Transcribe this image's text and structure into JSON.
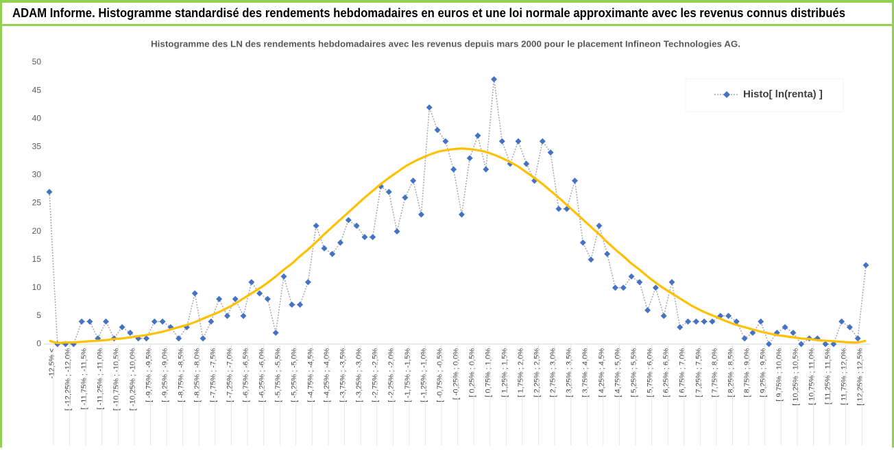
{
  "chart_data": {
    "type": "line",
    "suptitle": "ADAM Informe. Histogramme standardisé des rendements hebdomadaires en euros et une loi normale approximante avec les revenus connus distribués",
    "title": "Histogramme des LN des rendements hebdomadaires avec les revenus depuis mars 2000 pour le placement Infineon Technologies AG.",
    "categories": [
      "-12,5% <",
      null,
      "[ -12,25% ; -12,0%",
      null,
      "[ -11,75% ; -11,5%",
      null,
      "[ -11,25% ; -11,0%",
      null,
      "[ -10,75% ; -10,5%",
      null,
      "[ -10,25% ; -10,0%",
      null,
      "[ -9,75% ; -9,5%",
      null,
      "[ -9,25% ; -9,0%",
      null,
      "[ -8,75% ; -8,5%",
      null,
      "[ -8,25% ; -8,0%",
      null,
      "[ -7,75% ; -7,5%",
      null,
      "[ -7,25% ; -7,0%",
      null,
      "[ -6,75% ; -6,5%",
      null,
      "[ -6,25% ; -6,0%",
      null,
      "[ -5,75% ; -5,5%",
      null,
      "[ -5,25% ; -5,0%",
      null,
      "[ -4,75% ; -4,5%",
      null,
      "[ -4,25% ; -4,0%",
      null,
      "[ -3,75% ; -3,5%",
      null,
      "[ -3,25% ; -3,0%",
      null,
      "[ -2,75% ; -2,5%",
      null,
      "[ -2,25% ; -2,0%",
      null,
      "[ -1,75% ; -1,5%",
      null,
      "[ -1,25% ; -1,0%",
      null,
      "[ -0,75% ; -0,5%",
      null,
      "[ -0,25% ; 0,0%",
      null,
      "[ 0,25% ; 0,5%",
      null,
      "[ 0,75% ; 1,0%",
      null,
      "[ 1,25% ; 1,5%",
      null,
      "[ 1,75% ; 2,0%",
      null,
      "[ 2,25% ; 2,5%",
      null,
      "[ 2,75% ; 3,0%",
      null,
      "[ 3,25% ; 3,5%",
      null,
      "[ 3,75% ; 4,0%",
      null,
      "[ 4,25% ; 4,5%",
      null,
      "[ 4,75% ; 5,0%",
      null,
      "[ 5,25% ; 5,5%",
      null,
      "[ 5,75% ; 6,0%",
      null,
      "[ 6,25% ; 6,5%",
      null,
      "[ 6,75% ; 7,0%",
      null,
      "[ 7,25% ; 7,5%",
      null,
      "[ 7,75% ; 8,0%",
      null,
      "[ 8,25% ; 8,5%",
      null,
      "[ 8,75% ; 9,0%",
      null,
      "[ 9,25% ; 9,5%",
      null,
      "[ 9,75% ; 10,0%",
      null,
      "[ 10,25% ; 10,5%",
      null,
      "[ 10,75% ; 11,0%",
      null,
      "[ 11,25% ; 11,5%",
      null,
      "[ 11,75% ; 12,0%",
      null,
      "[ 12,25% ; 12,5%",
      null
    ],
    "series": [
      {
        "name": "Histo[ ln(renta) ]",
        "color": "#4472c4",
        "line_color": "#a6a6a6",
        "marker": "diamond",
        "smooth": false,
        "values": [
          27,
          0,
          0,
          0,
          4,
          4,
          1,
          4,
          1,
          3,
          2,
          1,
          1,
          4,
          4,
          3,
          1,
          3,
          9,
          1,
          4,
          8,
          5,
          8,
          5,
          11,
          9,
          8,
          2,
          12,
          7,
          7,
          11,
          21,
          17,
          16,
          18,
          22,
          21,
          19,
          19,
          28,
          27,
          20,
          26,
          29,
          23,
          42,
          38,
          36,
          31,
          23,
          33,
          37,
          31,
          47,
          36,
          32,
          36,
          32,
          29,
          36,
          34,
          24,
          24,
          29,
          18,
          15,
          21,
          16,
          10,
          10,
          12,
          11,
          6,
          10,
          5,
          11,
          3,
          4,
          4,
          4,
          4,
          5,
          5,
          4,
          1,
          2,
          4,
          0,
          2,
          3,
          2,
          0,
          1,
          1,
          0,
          0,
          4,
          3,
          1,
          14
        ]
      },
      {
        "color": "#ffc000",
        "line_color": "#ffc000",
        "smooth": true,
        "values": [
          0.6,
          0.2,
          0.3,
          0.3,
          0.4,
          0.5,
          0.6,
          0.7,
          0.9,
          1.0,
          1.2,
          1.4,
          1.6,
          1.9,
          2.2,
          2.6,
          3.0,
          3.4,
          3.9,
          4.5,
          5.1,
          5.7,
          6.4,
          7.2,
          8.1,
          9.0,
          9.9,
          10.9,
          12.0,
          13.2,
          14.3,
          15.6,
          16.8,
          18.1,
          19.5,
          20.8,
          22.1,
          23.4,
          24.7,
          26.0,
          27.2,
          28.4,
          29.5,
          30.5,
          31.5,
          32.3,
          33.0,
          33.6,
          34.1,
          34.4,
          34.6,
          34.7,
          34.6,
          34.4,
          34.1,
          33.6,
          33.0,
          32.3,
          31.5,
          30.5,
          29.5,
          28.4,
          27.2,
          26.0,
          24.7,
          23.4,
          22.1,
          20.8,
          19.5,
          18.1,
          16.8,
          15.6,
          14.3,
          13.2,
          12.0,
          10.9,
          9.9,
          9.0,
          8.1,
          7.2,
          6.4,
          5.7,
          5.1,
          4.5,
          3.9,
          3.4,
          3.0,
          2.6,
          2.2,
          1.9,
          1.6,
          1.4,
          1.2,
          1.0,
          0.9,
          0.7,
          0.6,
          0.5,
          0.4,
          0.3,
          0.3,
          0.6
        ]
      }
    ],
    "ylim": [
      0,
      50
    ],
    "yticks": [
      0,
      5,
      10,
      15,
      20,
      25,
      30,
      35,
      40,
      45,
      50
    ],
    "grid": false,
    "legend": "top-right"
  }
}
